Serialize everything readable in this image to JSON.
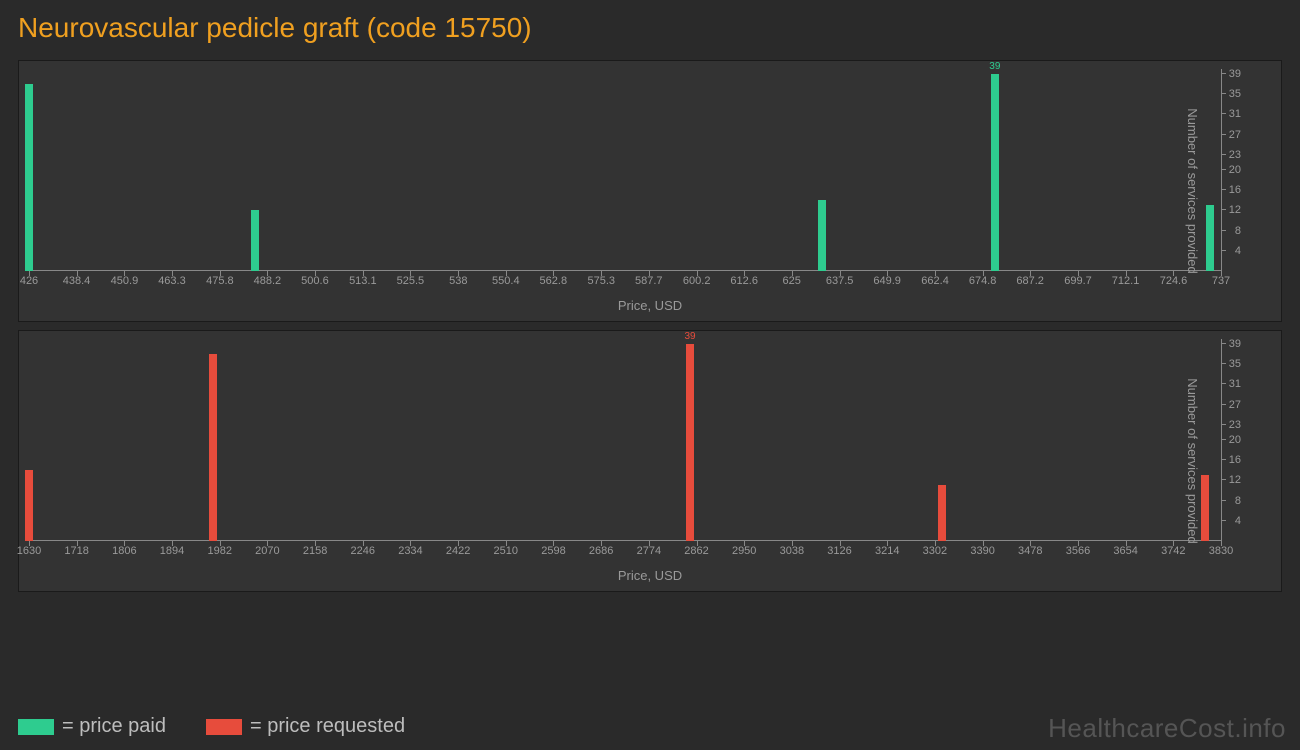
{
  "title": "Neurovascular pedicle graft (code 15750)",
  "background_color": "#2a2a2a",
  "panel_color": "#333333",
  "text_color": "#9a9a9a",
  "title_color": "#f0a020",
  "axis_color": "#888888",
  "watermark": "HealthcareCost.info",
  "ylabel": "Number of services provided",
  "xlabel": "Price, USD",
  "ymax": 40,
  "yticks": [
    4,
    8,
    12,
    16,
    20,
    23,
    27,
    31,
    35,
    39
  ],
  "top_chart": {
    "type": "bar",
    "color": "#2ecc8f",
    "xmin": 426,
    "xmax": 737,
    "xticks": [
      426,
      438.4,
      450.9,
      463.3,
      475.8,
      488.2,
      500.6,
      513.1,
      525.5,
      538,
      550.4,
      562.8,
      575.3,
      587.7,
      600.2,
      612.6,
      625,
      637.5,
      649.9,
      662.4,
      674.8,
      687.2,
      699.7,
      712.1,
      724.6,
      737
    ],
    "bars": [
      {
        "x": 426,
        "y": 37,
        "label": ""
      },
      {
        "x": 485,
        "y": 12,
        "label": ""
      },
      {
        "x": 633,
        "y": 14,
        "label": ""
      },
      {
        "x": 678,
        "y": 39,
        "label": "39"
      },
      {
        "x": 734,
        "y": 13,
        "label": ""
      }
    ]
  },
  "bottom_chart": {
    "type": "bar",
    "color": "#e74c3c",
    "xmin": 1630,
    "xmax": 3830,
    "xticks": [
      1630,
      1718,
      1806,
      1894,
      1982,
      2070,
      2158,
      2246,
      2334,
      2422,
      2510,
      2598,
      2686,
      2774,
      2862,
      2950,
      3038,
      3126,
      3214,
      3302,
      3390,
      3478,
      3566,
      3654,
      3742,
      3830
    ],
    "bars": [
      {
        "x": 1630,
        "y": 14,
        "label": ""
      },
      {
        "x": 1970,
        "y": 37,
        "label": ""
      },
      {
        "x": 2850,
        "y": 39,
        "label": "39"
      },
      {
        "x": 3315,
        "y": 11,
        "label": ""
      },
      {
        "x": 3800,
        "y": 13,
        "label": ""
      }
    ]
  },
  "legend": [
    {
      "color": "#2ecc8f",
      "label": "= price paid"
    },
    {
      "color": "#e74c3c",
      "label": "= price requested"
    }
  ]
}
